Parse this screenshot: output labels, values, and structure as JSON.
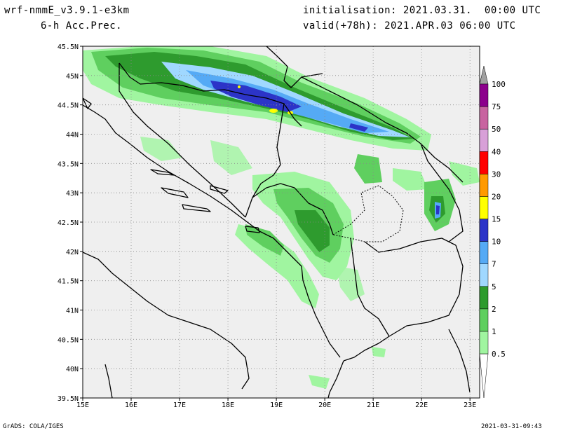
{
  "header": {
    "model": "wrf-nmmE_v3.9.1-e3km",
    "field": "6-h Acc.Prec.",
    "init": "initialisation: 2021.03.31.  00:00 UTC",
    "valid": "valid(+78h): 2021.APR.03 06:00 UTC"
  },
  "map": {
    "lat_labels": [
      "45.5N",
      "45N",
      "44.5N",
      "44N",
      "43.5N",
      "43N",
      "42.5N",
      "42N",
      "41.5N",
      "41N",
      "40.5N",
      "40N",
      "39.5N"
    ],
    "lon_labels": [
      "15E",
      "16E",
      "17E",
      "18E",
      "19E",
      "20E",
      "21E",
      "22E",
      "23E"
    ],
    "lat_range": [
      39.5,
      45.5
    ],
    "lon_range": [
      15,
      23.2
    ],
    "background_color": "#efefef",
    "grid": "dotted"
  },
  "legend": {
    "levels": [
      "0.5",
      "1",
      "2",
      "5",
      "7",
      "10",
      "15",
      "20",
      "30",
      "40",
      "50",
      "75",
      "100"
    ],
    "colors": [
      "#ffffff",
      "#a0f5a0",
      "#5fcf5f",
      "#2e9b2e",
      "#a0d8ff",
      "#55aaf5",
      "#2c34c8",
      "#ffff00",
      "#ff9a00",
      "#ff0000",
      "#d8a0d8",
      "#c864a0",
      "#8c008c",
      "#a0a0a0"
    ]
  },
  "footer": {
    "left": "GrADS: COLA/IGES",
    "right": "2021-03-31-09:43"
  }
}
